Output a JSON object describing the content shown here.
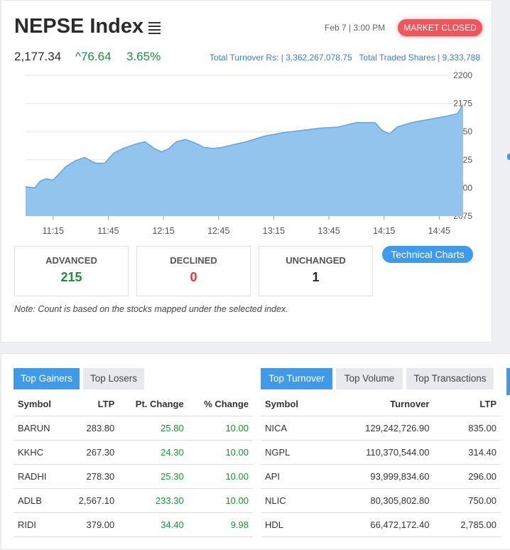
{
  "header": {
    "title": "NEPSE Index",
    "datetime": "Feb 7 | 3:00 PM",
    "market_status": "MARKET CLOSED"
  },
  "index": {
    "value": "2,177.34",
    "change": "^76.64",
    "percent": "3.65%",
    "turnover_label": "Total Turnover Rs: | 3,362,267,078.75",
    "traded_shares_label": "Total Traded Shares | 9,333,788"
  },
  "colors": {
    "accent": "#3d9be9",
    "up": "#1e8e3e",
    "down": "#e53935",
    "chart_fill": "#93c4ee"
  },
  "chart_data": {
    "type": "area",
    "x_ticks": [
      "11:15",
      "11:45",
      "12:15",
      "12:45",
      "13:15",
      "13:45",
      "14:15",
      "14:45"
    ],
    "y_ticks": [
      "2200",
      "2175",
      "2150",
      "2125",
      "2100",
      "2075"
    ],
    "ylim": [
      2075,
      2200
    ],
    "x": [
      "11:00",
      "11:05",
      "11:08",
      "11:11",
      "11:15",
      "11:18",
      "11:22",
      "11:27",
      "11:32",
      "11:38",
      "11:43",
      "11:48",
      "11:53",
      "12:00",
      "12:05",
      "12:10",
      "12:14",
      "12:18",
      "12:22",
      "12:27",
      "12:32",
      "12:37",
      "12:42",
      "12:47",
      "12:52",
      "13:00",
      "13:10",
      "13:20",
      "13:30",
      "13:40",
      "13:50",
      "14:00",
      "14:06",
      "14:10",
      "14:14",
      "14:18",
      "14:22",
      "14:30",
      "14:40",
      "14:50",
      "14:55",
      "14:58"
    ],
    "values": [
      2101,
      2100,
      2106,
      2108,
      2107,
      2112,
      2119,
      2124,
      2127,
      2122,
      2122,
      2131,
      2135,
      2139,
      2141,
      2135,
      2132,
      2135,
      2141,
      2143,
      2140,
      2136,
      2135,
      2136,
      2138,
      2141,
      2146,
      2149,
      2151,
      2153,
      2154,
      2158,
      2158,
      2158,
      2151,
      2148,
      2154,
      2158,
      2161,
      2164,
      2166,
      2174
    ]
  },
  "stats": {
    "advanced_label": "ADVANCED",
    "advanced_value": "215",
    "declined_label": "DECLINED",
    "declined_value": "0",
    "unchanged_label": "UNCHANGED",
    "unchanged_value": "1"
  },
  "technical_charts_label": "Technical Charts",
  "note": "Note: Count is based on the stocks mapped under the selected index.",
  "gainers_tabs": [
    "Top Gainers",
    "Top Losers"
  ],
  "turnover_tabs": [
    "Top Turnover",
    "Top Volume",
    "Top Transactions"
  ],
  "gainers": {
    "headers": [
      "Symbol",
      "LTP",
      "Pt. Change",
      "% Change"
    ],
    "rows": [
      [
        "BARUN",
        "283.80",
        "25.80",
        "10.00"
      ],
      [
        "KKHC",
        "267.30",
        "24.30",
        "10.00"
      ],
      [
        "RADHI",
        "278.30",
        "25.30",
        "10.00"
      ],
      [
        "ADLB",
        "2,567.10",
        "233.30",
        "10.00"
      ],
      [
        "RIDI",
        "379.00",
        "34.40",
        "9.98"
      ]
    ]
  },
  "turnover": {
    "headers": [
      "Symbol",
      "Turnover",
      "LTP"
    ],
    "rows": [
      [
        "NICA",
        "129,242,726.90",
        "835.00"
      ],
      [
        "NGPL",
        "110,370,544.00",
        "314.40"
      ],
      [
        "API",
        "93,999,834.60",
        "296.00"
      ],
      [
        "NLIC",
        "80,305,802.80",
        "750.00"
      ],
      [
        "HDL",
        "66,472,172.40",
        "2,785.00"
      ]
    ]
  }
}
